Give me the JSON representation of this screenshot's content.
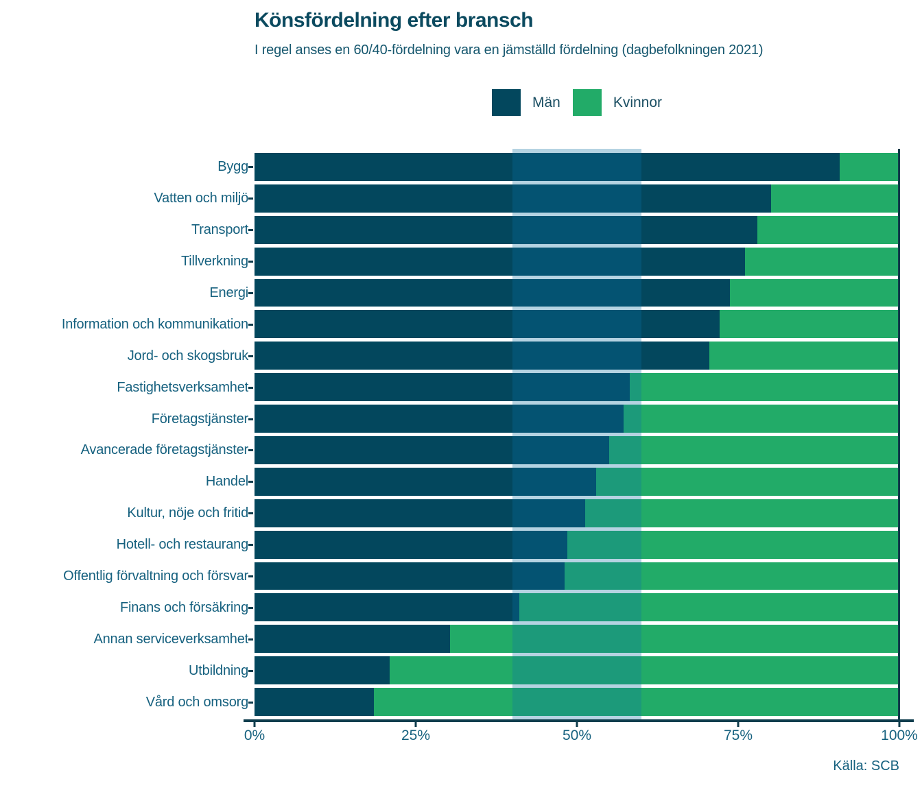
{
  "title": "Könsfördelning efter bransch",
  "subtitle": "I regel anses en 60/40-fördelning vara en jämställd fördelning (dagbefolkningen 2021)",
  "source": "Källa: SCB",
  "legend": {
    "men_label": "Män",
    "women_label": "Kvinnor"
  },
  "colors": {
    "men": "#03475D",
    "men_in_band": "#045372",
    "women": "#22AB68",
    "women_in_band": "#1C9A7A",
    "band": "#B5D3E2",
    "axis": "#0F3D4D",
    "title_text": "#0B4A5F",
    "body_text": "#16617F"
  },
  "chart_data": {
    "type": "bar",
    "variant": "stacked-horizontal",
    "title": "Könsfördelning efter bransch",
    "subtitle": "I regel anses en 60/40-fördelning vara en jämställd fördelning (dagbefolkningen 2021)",
    "source": "Källa: SCB",
    "xlim": [
      0,
      100
    ],
    "x_ticks": [
      {
        "value": 0,
        "label": "0%"
      },
      {
        "value": 25,
        "label": "25%"
      },
      {
        "value": 50,
        "label": "50%"
      },
      {
        "value": 75,
        "label": "75%"
      },
      {
        "value": 100,
        "label": "100%"
      }
    ],
    "highlight_band": {
      "from": 40,
      "to": 60
    },
    "legend_position": "top-center",
    "grid": false,
    "categories": [
      "Bygg",
      "Vatten och miljö",
      "Transport",
      "Tillverkning",
      "Energi",
      "Information och kommunikation",
      "Jord- och skogsbruk",
      "Fastighetsverksamhet",
      "Företagstjänster",
      "Avancerade företagstjänster",
      "Handel",
      "Kultur, nöje och fritid",
      "Hotell- och restaurang",
      "Offentlig förvaltning och försvar",
      "Finans och försäkring",
      "Annan serviceverksamhet",
      "Utbildning",
      "Vård och omsorg"
    ],
    "series": [
      {
        "name": "Män",
        "values": [
          90.7,
          80.1,
          78.0,
          76.1,
          73.7,
          72.1,
          70.5,
          58.2,
          57.2,
          55.0,
          53.0,
          51.3,
          48.5,
          48.1,
          41.1,
          30.3,
          21.0,
          18.5
        ]
      },
      {
        "name": "Kvinnor",
        "values": [
          9.3,
          19.9,
          22.0,
          23.9,
          26.3,
          27.9,
          29.5,
          41.8,
          42.8,
          45.0,
          47.0,
          48.7,
          51.5,
          51.9,
          58.9,
          69.7,
          79.0,
          81.5
        ]
      }
    ]
  }
}
